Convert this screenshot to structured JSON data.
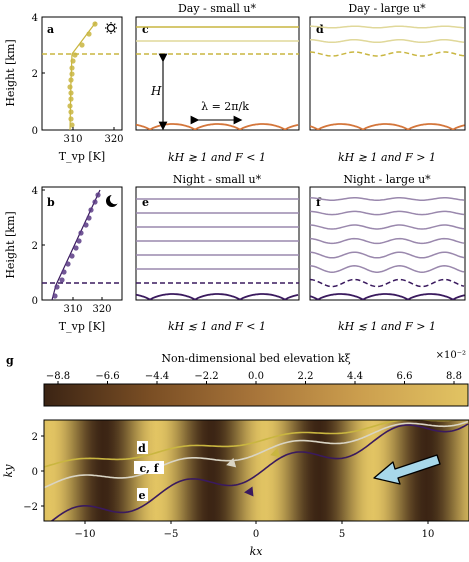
{
  "panels": {
    "a": {
      "label": "a",
      "xlabel": "T_vp [K]",
      "ylabel": "Height [km]",
      "xticks": [
        "310",
        "320"
      ],
      "yticks": [
        "0",
        "2",
        "4"
      ],
      "icon": "sun-icon"
    },
    "b": {
      "label": "b",
      "xlabel": "T_vp [K]",
      "ylabel": "Height [km]",
      "xticks": [
        "310",
        "320"
      ],
      "yticks": [
        "0",
        "2",
        "4"
      ],
      "icon": "moon-icon"
    },
    "c": {
      "label": "c",
      "title": "Day - small u*",
      "caption": "kH ≳ 1 and F < 1",
      "H_label": "H",
      "lambda_label": "λ = 2π/k"
    },
    "d": {
      "label": "d",
      "title": "Day - large u*",
      "caption": "kH ≳ 1 and F > 1"
    },
    "e": {
      "label": "e",
      "title": "Night - small u*",
      "caption": "kH ≲ 1 and F < 1"
    },
    "f": {
      "label": "f",
      "title": "Night - large u*",
      "caption": "kH ≲ 1 and F > 1"
    }
  },
  "colorbar": {
    "panel_label": "g",
    "title": "Non-dimensional bed elevation kξ",
    "exponent": "×10⁻²",
    "ticks": [
      "−8.8",
      "−6.6",
      "−4.4",
      "−2.2",
      "0.0",
      "2.2",
      "4.4",
      "6.6",
      "8.8"
    ]
  },
  "bottom_plot": {
    "xlabel": "kx",
    "ylabel": "ky",
    "xticks": [
      "−10",
      "−5",
      "0",
      "5",
      "10"
    ],
    "yticks": [
      "−2",
      "0",
      "2"
    ],
    "streamline_labels": [
      "d",
      "c, f",
      "e"
    ]
  },
  "colors": {
    "day": "#c9b640",
    "day_light": "#e0d89a",
    "night": "#3a1a5e",
    "night_light": "#9a88ad",
    "bed": "#d4763b",
    "arrow": "#a8d8ea"
  }
}
